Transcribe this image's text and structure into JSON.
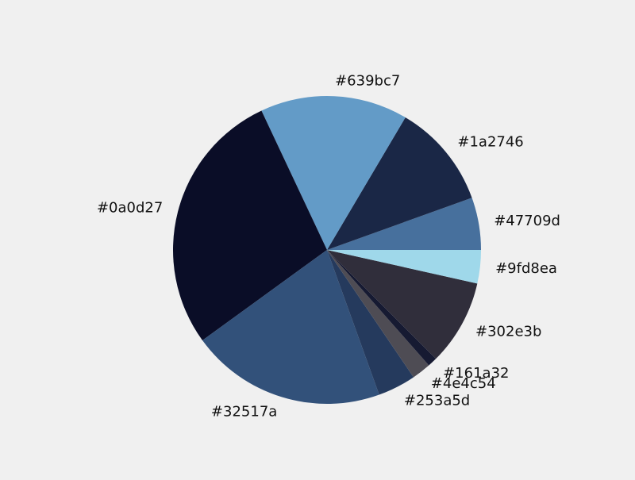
{
  "chart_data": {
    "type": "pie",
    "start_angle_deg": 0,
    "direction": "counterclockwise",
    "legend": "none",
    "slices": [
      {
        "label": "#47709d",
        "value": 5.5,
        "color": "#47709d"
      },
      {
        "label": "#1a2746",
        "value": 11.0,
        "color": "#1a2746"
      },
      {
        "label": "#639bc7",
        "value": 15.5,
        "color": "#639bc7"
      },
      {
        "label": "#0a0d27",
        "value": 28.0,
        "color": "#0a0d27"
      },
      {
        "label": "#32517a",
        "value": 20.5,
        "color": "#32517a"
      },
      {
        "label": "#253a5d",
        "value": 4.0,
        "color": "#253a5d"
      },
      {
        "label": "#4e4c54",
        "value": 2.0,
        "color": "#4e4c54"
      },
      {
        "label": "#161a32",
        "value": 1.0,
        "color": "#161a32"
      },
      {
        "label": "#302e3b",
        "value": 9.0,
        "color": "#302e3b"
      },
      {
        "label": "#9fd8ea",
        "value": 3.5,
        "color": "#9fd8ea"
      }
    ]
  }
}
